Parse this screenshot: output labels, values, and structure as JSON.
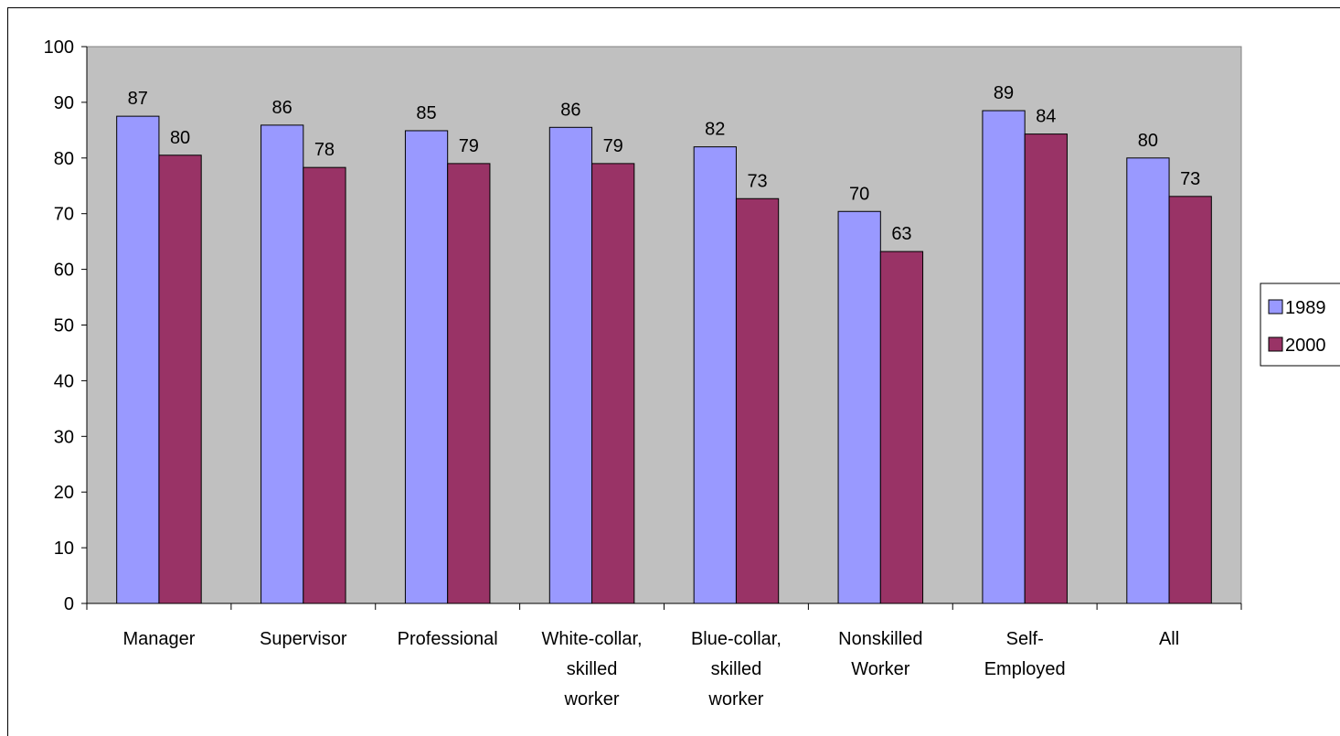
{
  "chart_data": {
    "type": "bar",
    "categories": [
      [
        "Manager"
      ],
      [
        "Supervisor"
      ],
      [
        "Professional"
      ],
      [
        "White-collar,",
        "skilled",
        "worker"
      ],
      [
        "Blue-collar,",
        "skilled",
        "worker"
      ],
      [
        "Nonskilled",
        "Worker"
      ],
      [
        "Self-",
        "Employed"
      ],
      [
        "All"
      ]
    ],
    "series": [
      {
        "name": "1989",
        "values": [
          87.5,
          85.9,
          84.9,
          85.5,
          82.0,
          70.4,
          88.5,
          80.0
        ],
        "labels": [
          "87",
          "86",
          "85",
          "86",
          "82",
          "70",
          "89",
          "80"
        ],
        "color": "#9999ff"
      },
      {
        "name": "2000",
        "values": [
          80.5,
          78.3,
          79.0,
          79.0,
          72.7,
          63.2,
          84.3,
          73.1
        ],
        "labels": [
          "80",
          "78",
          "79",
          "79",
          "73",
          "63",
          "84",
          "73"
        ],
        "color": "#993366"
      }
    ],
    "ylim": [
      0,
      100
    ],
    "yticks": [
      "0",
      "10",
      "20",
      "30",
      "40",
      "50",
      "60",
      "70",
      "80",
      "90",
      "100"
    ],
    "title": "",
    "xlabel": "",
    "ylabel": "",
    "plot_background": "#c0c0c0",
    "grid": false,
    "legend_position": "right"
  }
}
